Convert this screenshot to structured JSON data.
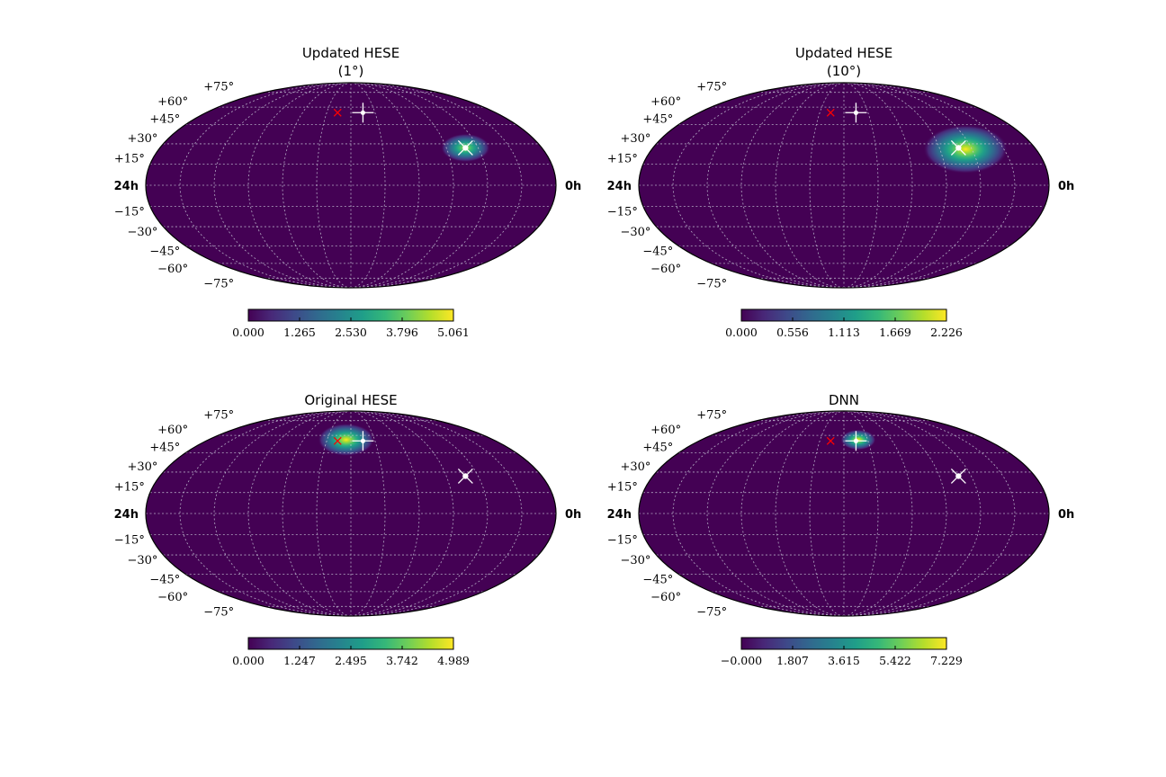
{
  "colors": {
    "colormap": [
      "#440154",
      "#482878",
      "#3e4989",
      "#31688e",
      "#26828e",
      "#1f9e89",
      "#35b779",
      "#6ece58",
      "#b5de2b",
      "#fde725"
    ],
    "background": "#440154",
    "grid": "#c8c8d8",
    "edge": "#000000",
    "marker_cross": "#ff0000",
    "marker_star": "#ffffff"
  },
  "chart_data": [
    {
      "type": "heatmap",
      "projection": "mollweide",
      "title": [
        "Updated HESE",
        "(1°)"
      ],
      "ra_labels": {
        "left": "24h",
        "right": "0h"
      },
      "dec_labels": [
        "+75°",
        "+60°",
        "+45°",
        "+30°",
        "+15°",
        "−15°",
        "−30°",
        "−45°",
        "−60°",
        "−75°"
      ],
      "grid": true,
      "colorbar": {
        "orientation": "horizontal",
        "min": 0.0,
        "max": 5.061,
        "ticks": [
          "0.000",
          "1.265",
          "2.530",
          "3.796",
          "5.061"
        ]
      },
      "hotspot": {
        "ra_h": 4.8,
        "dec_deg": 27,
        "sigma_deg": 7,
        "peak_fraction": 0.88
      },
      "markers": [
        {
          "symbol": "x-red",
          "ra_h": 13.1,
          "dec_deg": 55
        },
        {
          "symbol": "plus-white",
          "ra_h": 11.0,
          "dec_deg": 55
        },
        {
          "symbol": "star-white",
          "ra_h": 4.8,
          "dec_deg": 27
        }
      ]
    },
    {
      "type": "heatmap",
      "projection": "mollweide",
      "title": [
        "Updated HESE",
        "(10°)"
      ],
      "ra_labels": {
        "left": "24h",
        "right": "0h"
      },
      "dec_labels": [
        "+75°",
        "+60°",
        "+45°",
        "+30°",
        "+15°",
        "−15°",
        "−30°",
        "−45°",
        "−60°",
        "−75°"
      ],
      "grid": true,
      "colorbar": {
        "orientation": "horizontal",
        "min": 0.0,
        "max": 2.226,
        "ticks": [
          "0.000",
          "0.556",
          "1.113",
          "1.669",
          "2.226"
        ]
      },
      "hotspot": {
        "ra_h": 4.4,
        "dec_deg": 26,
        "sigma_deg": 12,
        "peak_fraction": 0.95
      },
      "markers": [
        {
          "symbol": "x-red",
          "ra_h": 13.1,
          "dec_deg": 55
        },
        {
          "symbol": "plus-white",
          "ra_h": 11.0,
          "dec_deg": 55
        },
        {
          "symbol": "star-white",
          "ra_h": 4.8,
          "dec_deg": 27
        }
      ]
    },
    {
      "type": "heatmap",
      "projection": "mollweide",
      "title": [
        "Original HESE"
      ],
      "ra_labels": {
        "left": "24h",
        "right": "0h"
      },
      "dec_labels": [
        "+75°",
        "+60°",
        "+45°",
        "+30°",
        "+15°",
        "−15°",
        "−30°",
        "−45°",
        "−60°",
        "−75°"
      ],
      "grid": true,
      "colorbar": {
        "orientation": "horizontal",
        "min": 0.0,
        "max": 4.989,
        "ticks": [
          "0.000",
          "1.247",
          "2.495",
          "3.742",
          "4.989"
        ]
      },
      "hotspot": {
        "ra_h": 12.4,
        "dec_deg": 56,
        "sigma_deg": 8,
        "peak_fraction": 0.95
      },
      "markers": [
        {
          "symbol": "x-red",
          "ra_h": 13.1,
          "dec_deg": 55
        },
        {
          "symbol": "plus-white",
          "ra_h": 11.0,
          "dec_deg": 55
        },
        {
          "symbol": "star-white",
          "ra_h": 4.8,
          "dec_deg": 27
        }
      ]
    },
    {
      "type": "heatmap",
      "projection": "mollweide",
      "title": [
        "DNN"
      ],
      "ra_labels": {
        "left": "24h",
        "right": "0h"
      },
      "dec_labels": [
        "+75°",
        "+60°",
        "+45°",
        "+30°",
        "+15°",
        "−15°",
        "−30°",
        "−45°",
        "−60°",
        "−75°"
      ],
      "grid": true,
      "colorbar": {
        "orientation": "horizontal",
        "min": 0.0,
        "max": 7.229,
        "ticks": [
          "−0.000",
          "1.807",
          "3.615",
          "5.422",
          "7.229"
        ]
      },
      "hotspot": {
        "ra_h": 10.8,
        "dec_deg": 56,
        "sigma_deg": 5,
        "peak_fraction": 0.96
      },
      "markers": [
        {
          "symbol": "x-red",
          "ra_h": 13.1,
          "dec_deg": 55
        },
        {
          "symbol": "plus-white",
          "ra_h": 11.0,
          "dec_deg": 55
        },
        {
          "symbol": "star-white",
          "ra_h": 4.8,
          "dec_deg": 27
        }
      ]
    }
  ]
}
